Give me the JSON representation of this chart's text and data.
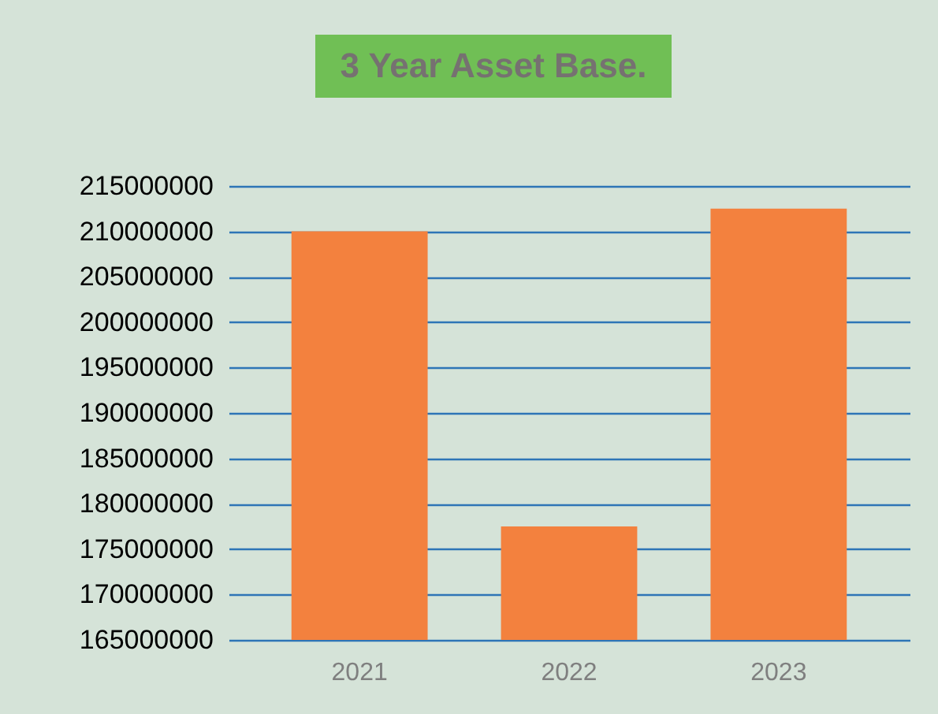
{
  "chart_data": {
    "type": "bar",
    "title": "3 Year Asset Base.",
    "categories": [
      "2021",
      "2022",
      "2023"
    ],
    "values": [
      210000000,
      177500000,
      212500000
    ],
    "color": "#f3813e",
    "ylim": [
      165000000,
      215000000
    ],
    "yticks": [
      165000000,
      170000000,
      175000000,
      180000000,
      185000000,
      190000000,
      195000000,
      200000000,
      205000000,
      210000000,
      215000000
    ],
    "grid": "y"
  }
}
